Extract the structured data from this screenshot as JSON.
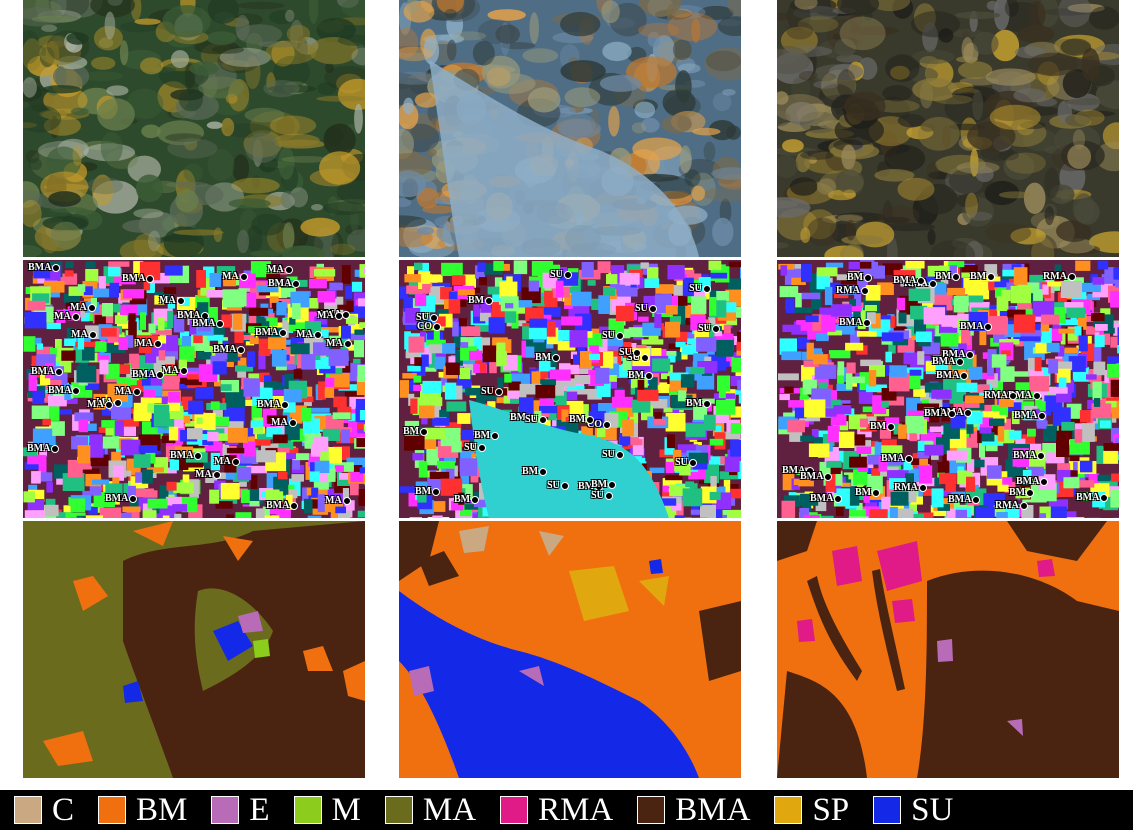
{
  "legend": [
    {
      "label": "C",
      "color": "#c9a882"
    },
    {
      "label": "BM",
      "color": "#f07010"
    },
    {
      "label": "E",
      "color": "#b86bb6"
    },
    {
      "label": "M",
      "color": "#8ccc1c"
    },
    {
      "label": "MA",
      "color": "#6b6b1e"
    },
    {
      "label": "RMA",
      "color": "#e01a86"
    },
    {
      "label": "BMA",
      "color": "#4a2410"
    },
    {
      "label": "SP",
      "color": "#e0a80e"
    },
    {
      "label": "SU",
      "color": "#1428e8"
    }
  ],
  "photos": [
    {
      "name": "kelp-forest-photo",
      "base": "#2e4a2c"
    },
    {
      "name": "rock-sand-photo",
      "base": "#4f6e86"
    },
    {
      "name": "kelp-rock-photo",
      "base": "#3a3a2c"
    }
  ],
  "point_labels": [
    [
      "MA",
      "MA",
      "MA",
      "MA",
      "MA",
      "BMA",
      "MA",
      "BMA",
      "BMA",
      "MA",
      "BMA",
      "MA",
      "BMA",
      "MA",
      "BMA",
      "MA",
      "BMA",
      "BMA",
      "MA",
      "BMA",
      "BMA",
      "MA",
      "BMA",
      "MA",
      "BMA",
      "MA",
      "MA",
      "BMA",
      "BMA",
      "MA",
      "BMA",
      "MA",
      "BMA",
      "MA"
    ],
    [
      "BM",
      "BM",
      "SU",
      "BM",
      "CO",
      "BM",
      "SU",
      "SU",
      "BM",
      "SU",
      "BM",
      "SU",
      "BM",
      "SU",
      "BM",
      "CO",
      "BM",
      "BM",
      "SU",
      "BM",
      "SU",
      "SU",
      "SU",
      "SU",
      "BM",
      "SU",
      "SU",
      "BM",
      "SU",
      "SU"
    ],
    [
      "RMA",
      "BMA",
      "BMA",
      "BMA",
      "RMA",
      "BMA",
      "RMA",
      "BM",
      "BMA",
      "RMA",
      "BMA",
      "BM",
      "RMA",
      "BM",
      "BMA",
      "RMA",
      "BMA",
      "BM",
      "RMA",
      "BMA",
      "BMA",
      "BM",
      "BMA",
      "BMA",
      "BMA",
      "BMA",
      "BMA",
      "BMA",
      "BMA",
      "BM"
    ]
  ]
}
